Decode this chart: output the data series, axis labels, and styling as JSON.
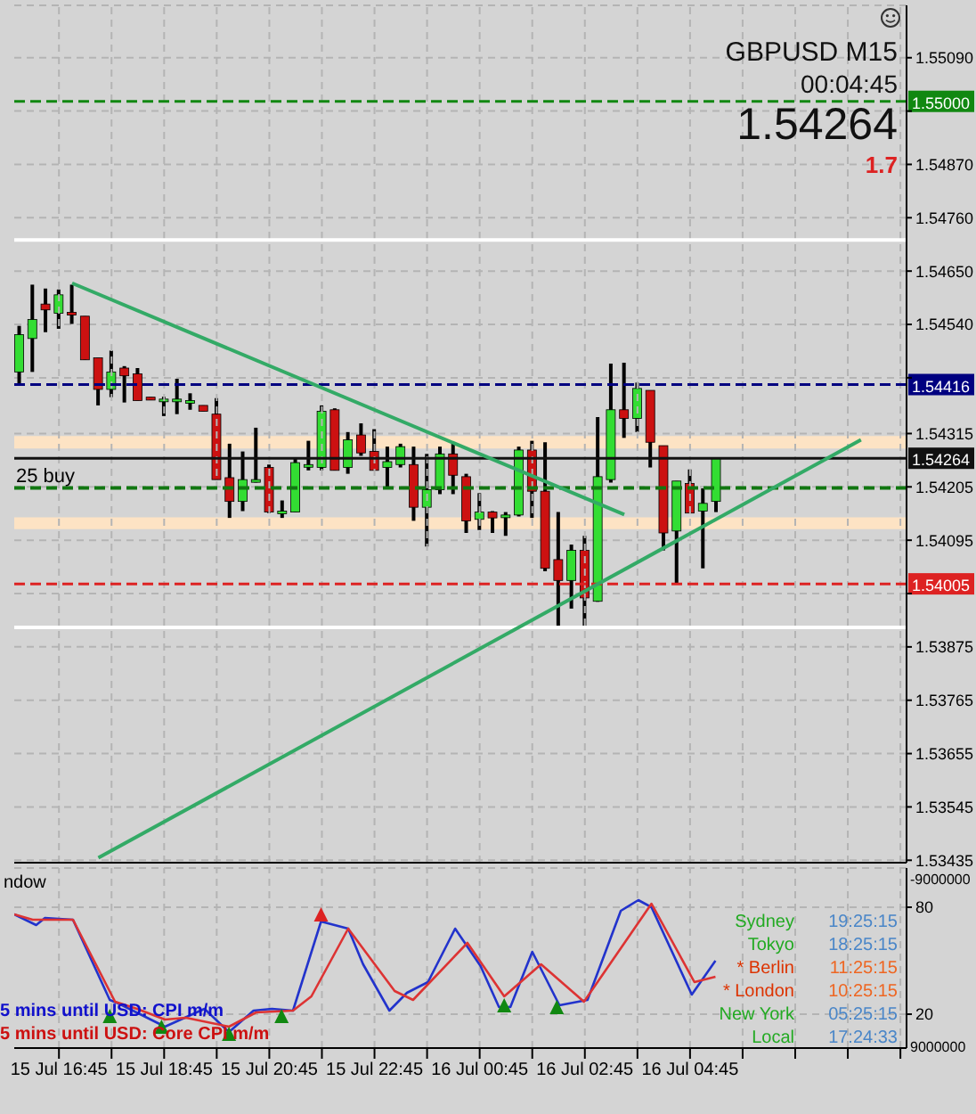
{
  "chart_data": [
    {
      "type": "candlestick",
      "x": [
        "--07-15T16:00",
        "--07-15T16:15",
        "--07-15T16:30",
        "--07-15T16:45",
        "--07-15T17:00",
        "--07-15T17:15",
        "--07-15T17:30",
        "--07-15T17:45",
        "--07-15T18:00",
        "--07-15T18:15",
        "--07-15T18:30",
        "--07-15T18:45",
        "--07-15T19:00",
        "--07-15T19:15",
        "--07-15T19:30",
        "--07-15T19:45",
        "--07-15T20:00",
        "--07-15T20:15",
        "--07-15T20:30",
        "--07-15T20:45",
        "--07-15T21:00",
        "--07-15T21:15",
        "--07-15T21:30",
        "--07-15T21:45",
        "--07-15T22:00",
        "--07-15T22:15",
        "--07-15T22:30",
        "--07-15T22:45",
        "--07-15T23:00",
        "--07-15T23:15",
        "--07-15T23:30",
        "--07-15T23:45",
        "--07-16T00:00",
        "--07-16T00:15",
        "--07-16T00:30",
        "--07-16T00:45",
        "--07-16T01:00",
        "--07-16T01:15",
        "--07-16T01:30",
        "--07-16T01:45",
        "--07-16T02:00",
        "--07-16T02:15",
        "--07-16T02:30",
        "--07-16T02:45",
        "--07-16T03:00",
        "--07-16T03:15",
        "--07-16T03:30",
        "--07-16T03:45",
        "--07-16T04:00",
        "--07-16T04:15",
        "--07-16T04:30",
        "--07-16T04:45",
        "--07-16T05:00",
        "--07-16T05:15"
      ],
      "ohlc": [
        [
          1.54442,
          1.54537,
          1.54416,
          1.54519
        ],
        [
          1.54511,
          1.54622,
          1.54442,
          1.5455
        ],
        [
          1.54582,
          1.54614,
          1.54524,
          1.5457
        ],
        [
          1.54563,
          1.54612,
          1.54531,
          1.54601
        ],
        [
          1.54565,
          1.54622,
          1.54541,
          1.54563
        ],
        [
          1.54557,
          1.54557,
          1.54467,
          1.54467
        ],
        [
          1.54471,
          1.54471,
          1.54373,
          1.54406
        ],
        [
          1.54406,
          1.54486,
          1.5439,
          1.54442
        ],
        [
          1.5445,
          1.54454,
          1.54379,
          1.54434
        ],
        [
          1.54438,
          1.5445,
          1.54383,
          1.54383
        ],
        [
          1.5439,
          1.5439,
          1.54384,
          1.54384
        ],
        [
          1.54386,
          1.54391,
          1.54351,
          1.54386
        ],
        [
          1.54386,
          1.54428,
          1.54355,
          1.54386
        ],
        [
          1.54383,
          1.54398,
          1.54364,
          1.54383
        ],
        [
          1.54373,
          1.54373,
          1.54361,
          1.54361
        ],
        [
          1.54355,
          1.54388,
          1.5422,
          1.5422
        ],
        [
          1.54224,
          1.54294,
          1.54141,
          1.54175
        ],
        [
          1.54175,
          1.54278,
          1.54155,
          1.5422
        ],
        [
          1.5422,
          1.54327,
          1.54214,
          1.5422
        ],
        [
          1.54245,
          1.54251,
          1.54151,
          1.54153
        ],
        [
          1.54155,
          1.54177,
          1.54141,
          1.54155
        ],
        [
          1.54153,
          1.54263,
          1.54153,
          1.54255
        ],
        [
          1.54251,
          1.543,
          1.54239,
          1.54251
        ],
        [
          1.54245,
          1.54373,
          1.54239,
          1.54361
        ],
        [
          1.54364,
          1.54367,
          1.54239,
          1.54239
        ],
        [
          1.54245,
          1.54318,
          1.54232,
          1.54302
        ],
        [
          1.54312,
          1.54336,
          1.54269,
          1.54275
        ],
        [
          1.54278,
          1.54324,
          1.54239,
          1.54239
        ],
        [
          1.54245,
          1.54288,
          1.54204,
          1.54257
        ],
        [
          1.54251,
          1.54294,
          1.54245,
          1.54288
        ],
        [
          1.54251,
          1.54288,
          1.54135,
          1.54163
        ],
        [
          1.54163,
          1.54273,
          1.54082,
          1.54199
        ],
        [
          1.54199,
          1.54288,
          1.5419,
          1.54273
        ],
        [
          1.54273,
          1.54294,
          1.5419,
          1.54229
        ],
        [
          1.54226,
          1.54232,
          1.5411,
          1.54135
        ],
        [
          1.54138,
          1.54192,
          1.54116,
          1.54153
        ],
        [
          1.54153,
          1.54155,
          1.5411,
          1.54141
        ],
        [
          1.54147,
          1.54153,
          1.54104,
          1.54147
        ],
        [
          1.54147,
          1.54288,
          1.54144,
          1.54281
        ],
        [
          1.54281,
          1.543,
          1.54141,
          1.54196
        ],
        [
          1.54196,
          1.54297,
          1.54031,
          1.54037
        ],
        [
          1.54055,
          1.54153,
          1.53917,
          1.54012
        ],
        [
          1.54012,
          1.54086,
          1.53954,
          1.54074
        ],
        [
          1.54074,
          1.54104,
          1.53913,
          1.53976
        ],
        [
          1.53969,
          1.54349,
          1.53968,
          1.54226
        ],
        [
          1.5422,
          1.54459,
          1.54214,
          1.54364
        ],
        [
          1.54364,
          1.54461,
          1.54306,
          1.54346
        ],
        [
          1.54346,
          1.5442,
          1.54318,
          1.54408
        ],
        [
          1.54404,
          1.54404,
          1.54245,
          1.54297
        ],
        [
          1.5429,
          1.5429,
          1.54074,
          1.5411
        ],
        [
          1.54114,
          1.54217,
          1.54006,
          1.54217
        ],
        [
          1.54212,
          1.54241,
          1.54151,
          1.54151
        ],
        [
          1.54155,
          1.54202,
          1.54037,
          1.54171
        ],
        [
          1.54175,
          1.54264,
          1.54153,
          1.54264
        ]
      ],
      "series": [
        {
          "type": "line",
          "color": "#33aa66",
          "x": [
            "--07-15T17:00",
            "--07-16T03:30"
          ],
          "values": [
            1.54625,
            1.54148
          ]
        },
        {
          "type": "line",
          "color": "#33aa66",
          "x": [
            "--07-15T17:30",
            "--07-16T08:00"
          ],
          "values": [
            1.5344,
            1.54302
          ]
        }
      ],
      "xlim": [
        "--07-15T15:54",
        "--07-16T08:52"
      ],
      "xticks": [
        {
          "value": "--07-15T16:45",
          "label": null
        },
        {
          "value": "--07-15T17:45",
          "label": null
        },
        {
          "value": "--07-15T18:45",
          "label": null
        },
        {
          "value": "--07-15T19:45",
          "label": null
        },
        {
          "value": "--07-15T20:45",
          "label": null
        },
        {
          "value": "--07-15T21:45",
          "label": null
        },
        {
          "value": "--07-15T22:45",
          "label": null
        },
        {
          "value": "--07-15T23:45",
          "label": null
        },
        {
          "value": "--07-16T00:45",
          "label": null
        },
        {
          "value": "--07-16T01:45",
          "label": null
        },
        {
          "value": "--07-16T02:45",
          "label": null
        },
        {
          "value": "--07-16T03:45",
          "label": null
        },
        {
          "value": "--07-16T04:45",
          "label": null
        },
        {
          "value": "--07-16T05:45",
          "label": null
        },
        {
          "value": "--07-16T06:45",
          "label": null
        },
        {
          "value": "--07-16T07:45",
          "label": null
        },
        {
          "value": "--07-16T08:45",
          "label": null
        }
      ],
      "ylim": [
        1.5343,
        1.55198
      ],
      "yticks": [
        {
          "value": 1.5509,
          "label": "1.55090"
        },
        {
          "value": 1.5498,
          "label": null
        },
        {
          "value": 1.5487,
          "label": "1.54870"
        },
        {
          "value": 1.5476,
          "label": "1.54760"
        },
        {
          "value": 1.5465,
          "label": "1.54650"
        },
        {
          "value": 1.5454,
          "label": "1.54540"
        },
        {
          "value": 1.5443,
          "label": null
        },
        {
          "value": 1.54315,
          "label": "1.54315"
        },
        {
          "value": 1.54205,
          "label": "1.54205"
        },
        {
          "value": 1.54095,
          "label": "1.54095"
        },
        {
          "value": 1.53985,
          "label": null
        },
        {
          "value": 1.53875,
          "label": "1.53875"
        },
        {
          "value": 1.53765,
          "label": "1.53765"
        },
        {
          "value": 1.53655,
          "label": "1.53655"
        },
        {
          "value": 1.53545,
          "label": "1.53545"
        },
        {
          "value": 1.53435,
          "label": "1.53435"
        }
      ],
      "tick_labels": "y",
      "grid": true,
      "ref_lines": [
        {
          "axis": "y",
          "value": 1.55,
          "label": "1.55000",
          "color": "#118811",
          "line_style": "dashed"
        },
        {
          "axis": "y",
          "value": 1.54416,
          "label": "1.54416",
          "color": "#000080",
          "line_style": "dashed"
        },
        {
          "axis": "y",
          "value": 1.54264,
          "label": "1.54264",
          "color": "#111111",
          "line_style": "solid"
        },
        {
          "axis": "y",
          "value": 1.54005,
          "label": "1.54005",
          "color": "#dd2222",
          "line_style": "dashed"
        },
        {
          "axis": "y",
          "value": 1.54203,
          "color": "#117711",
          "line_style": "dashed"
        },
        {
          "axis": "y",
          "value": 1.54714,
          "color": "#ffffff",
          "line_style": "solid"
        },
        {
          "axis": "y",
          "value": 1.53915,
          "color": "#ffffff",
          "line_style": "solid"
        }
      ],
      "bands": [
        {
          "axis": "y",
          "from": 1.54284,
          "to": 1.5431,
          "color": "#fde3c4"
        },
        {
          "axis": "y",
          "from": 1.54118,
          "to": 1.54142,
          "color": "#fde3c4"
        }
      ],
      "annotations": [
        "GBPUSD M15",
        "00:04:45",
        "1.54264",
        "1.7",
        {
          "text": "25 buy",
          "x": "--07-15T15:54",
          "y": 1.54203
        }
      ]
    },
    {
      "type": "line",
      "series": [
        {
          "color": "#2233cc",
          "x": [
            "--07-15T15:54",
            "--07-15T16:19",
            "--07-15T16:29",
            "--07-15T17:01",
            "--07-15T17:43",
            "--07-15T17:53",
            "--07-15T18:46",
            "--07-15T19:31",
            "--07-15T19:59",
            "--07-15T20:27",
            "--07-15T20:48",
            "--07-15T21:12",
            "--07-15T21:44",
            "--07-15T22:15",
            "--07-15T22:32",
            "--07-15T23:02",
            "--07-15T23:22",
            "--07-15T23:46",
            "--07-16T00:17",
            "--07-16T00:46",
            "--07-16T01:07",
            "--07-16T01:20",
            "--07-16T01:45",
            "--07-16T02:16",
            "--07-16T02:48",
            "--07-16T03:26",
            "--07-16T03:46",
            "--07-16T04:01",
            "--07-16T04:47",
            "--07-16T05:14"
          ],
          "values": [
            76,
            70,
            74,
            73,
            28,
            26,
            13,
            23,
            10,
            22,
            23,
            22,
            72,
            68,
            48,
            22,
            32,
            38,
            68,
            47,
            24,
            24,
            55,
            25,
            28,
            78,
            84,
            80,
            31,
            50
          ]
        },
        {
          "color": "#dd3333",
          "x": [
            "--07-15T15:54",
            "--07-15T16:15",
            "--07-15T17:01",
            "--07-15T17:25",
            "--07-15T17:49",
            "--07-15T18:14",
            "--07-15T18:46",
            "--07-15T19:10",
            "--07-15T19:59",
            "--07-15T20:30",
            "--07-15T21:12",
            "--07-15T21:33",
            "--07-15T22:15",
            "--07-15T23:08",
            "--07-15T23:29",
            "--07-16T00:31",
            "--07-16T01:13",
            "--07-16T01:55",
            "--07-16T02:44",
            "--07-16T04:01",
            "--07-16T04:50",
            "--07-16T05:14"
          ],
          "values": [
            76,
            73,
            73,
            50,
            27,
            23,
            17,
            18,
            13,
            21,
            22,
            30,
            68,
            33,
            28,
            60,
            30,
            48,
            27,
            82,
            38,
            41
          ]
        },
        {
          "type": "scatter",
          "marker": "triangle",
          "color": "#118811",
          "x": [
            "--07-15T17:43",
            "--07-15T18:42",
            "--07-15T19:59",
            "--07-15T20:59",
            "--07-16T01:13",
            "--07-16T02:13"
          ],
          "values": [
            18,
            12,
            8,
            18,
            24,
            23
          ]
        },
        {
          "type": "scatter",
          "marker": "triangle",
          "color": "#dd2222",
          "x": [
            "--07-15T21:44"
          ],
          "values": [
            75
          ]
        }
      ],
      "xlim": [
        "--07-15T15:54",
        "--07-16T08:52"
      ],
      "xticks": [
        {
          "value": "--07-15T16:45",
          "label": "15 Jul 16:45"
        },
        {
          "value": "--07-15T17:45",
          "label": null
        },
        {
          "value": "--07-15T18:45",
          "label": "15 Jul 18:45"
        },
        {
          "value": "--07-15T19:45",
          "label": null
        },
        {
          "value": "--07-15T20:45",
          "label": "15 Jul 20:45"
        },
        {
          "value": "--07-15T21:45",
          "label": null
        },
        {
          "value": "--07-15T22:45",
          "label": "15 Jul 22:45"
        },
        {
          "value": "--07-15T23:45",
          "label": null
        },
        {
          "value": "--07-16T00:45",
          "label": "16 Jul 00:45"
        },
        {
          "value": "--07-16T01:45",
          "label": null
        },
        {
          "value": "--07-16T02:45",
          "label": "16 Jul 02:45"
        },
        {
          "value": "--07-16T03:45",
          "label": null
        },
        {
          "value": "--07-16T04:45",
          "label": "16 Jul 04:45"
        },
        {
          "value": "--07-16T05:45",
          "label": null
        },
        {
          "value": "--07-16T06:45",
          "label": null
        },
        {
          "value": "--07-16T07:45",
          "label": null
        },
        {
          "value": "--07-16T08:45",
          "label": null
        }
      ],
      "ylim": [
        1,
        102
      ],
      "yticks": [
        80,
        20
      ],
      "grid": true,
      "annotations": [
        "ndow",
        "5 mins until USD: CPI m/m",
        "5 mins until USD: Core CPI m/m",
        "Sydney",
        "19:25:15",
        "Tokyo",
        "18:25:15",
        "* Berlin",
        "11:25:15",
        "* London",
        "10:25:15",
        "New York",
        "05:25:15",
        "Local",
        "17:24:33",
        "-9000000",
        "9000000"
      ]
    }
  ]
}
